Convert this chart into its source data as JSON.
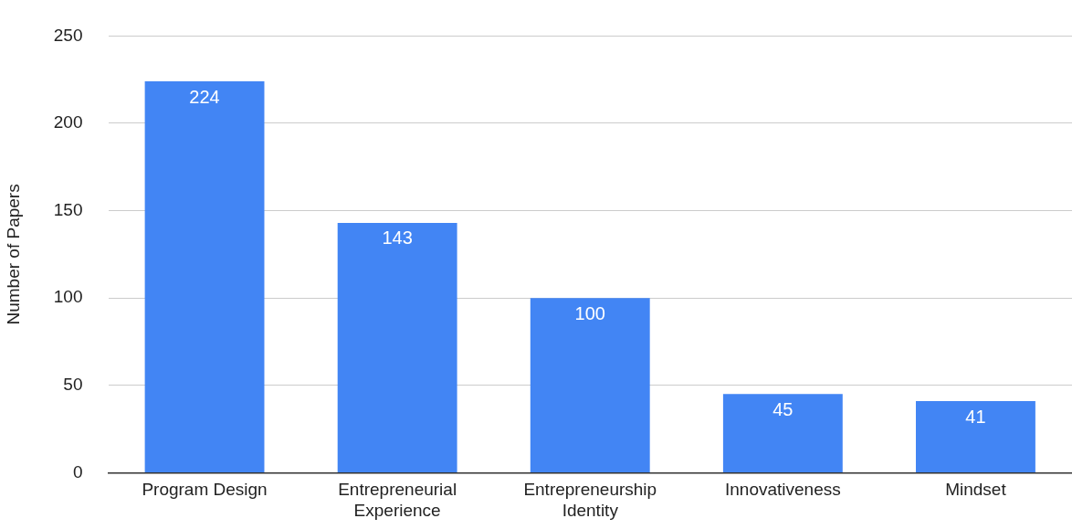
{
  "chart_data": {
    "type": "bar",
    "ylabel": "Number of Papers",
    "categories": [
      "Program Design",
      "Entrepreneurial Experience",
      "Entrepreneurship Identity",
      "Innovativeness",
      "Mindset"
    ],
    "values": [
      224,
      143,
      100,
      45,
      41
    ],
    "color": "#4285f4",
    "ylim": [
      0,
      250
    ],
    "yticks": [
      0,
      50,
      100,
      150,
      200,
      250
    ],
    "grid": "y",
    "data_labels": true
  }
}
